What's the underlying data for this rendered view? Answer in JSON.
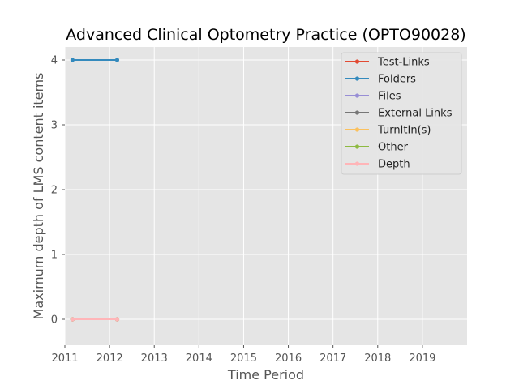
{
  "chart_data": {
    "type": "line",
    "title": "Advanced Clinical Optometry Practice (OPTO90028)",
    "xlabel": "Time Period",
    "ylabel": "Maximum depth of LMS content items",
    "xlim": [
      2011,
      2020
    ],
    "ylim": [
      -0.4,
      4.2
    ],
    "x_ticks": [
      "2011",
      "2012",
      "2013",
      "2014",
      "2015",
      "2016",
      "2017",
      "2018",
      "2019"
    ],
    "y_ticks": [
      0,
      1,
      2,
      3,
      4
    ],
    "grid": true,
    "legend_position": "top-right",
    "x": [
      2011.17,
      2012.17
    ],
    "series": [
      {
        "name": "Test-Links",
        "color": "#e24a33",
        "values": [
          0,
          0
        ]
      },
      {
        "name": "Folders",
        "color": "#348abd",
        "values": [
          4,
          4
        ]
      },
      {
        "name": "Files",
        "color": "#988ed5",
        "values": [
          0,
          0
        ]
      },
      {
        "name": "External Links",
        "color": "#777777",
        "values": [
          0,
          0
        ]
      },
      {
        "name": "TurnItIn(s)",
        "color": "#fbc15e",
        "values": [
          0,
          0
        ]
      },
      {
        "name": "Other",
        "color": "#8eba42",
        "values": [
          0,
          0
        ]
      },
      {
        "name": "Depth",
        "color": "#ffb5b8",
        "values": [
          0,
          0
        ]
      }
    ]
  }
}
